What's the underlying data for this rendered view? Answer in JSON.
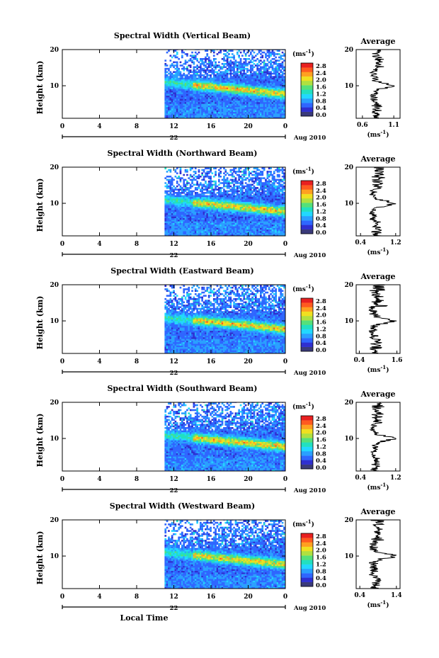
{
  "chart_data": {
    "type": "heatmap",
    "panels": [
      {
        "title": "Spectral Width (Vertical Beam)",
        "day": "22",
        "avg_ticks": [
          "0.6",
          "1.1"
        ],
        "avg_range": [
          0.5,
          1.2
        ]
      },
      {
        "title": "Spectral Width (Northward Beam)",
        "day": "22",
        "avg_ticks": [
          "0.4",
          "1.2"
        ],
        "avg_range": [
          0.3,
          1.3
        ]
      },
      {
        "title": "Spectral Width (Eastward Beam)",
        "day": "22",
        "avg_ticks": [
          "0.4",
          "1.6"
        ],
        "avg_range": [
          0.3,
          1.7
        ]
      },
      {
        "title": "Spectral Width (Southward Beam)",
        "day": "22",
        "avg_ticks": [
          "0.4",
          "1.2"
        ],
        "avg_range": [
          0.3,
          1.3
        ]
      },
      {
        "title": "Spectral Width (Westward Beam)",
        "day": "22",
        "avg_ticks": [
          "0.4",
          "1.4"
        ],
        "avg_range": [
          0.3,
          1.5
        ]
      }
    ],
    "ylabel": "Height (km)",
    "y_ticks": [
      10,
      20
    ],
    "y_range": [
      1,
      20
    ],
    "x_ticks": [
      "0",
      "4",
      "8",
      "12",
      "16",
      "20",
      "0"
    ],
    "x_range": [
      0,
      24
    ],
    "xlabel": "Local Time",
    "date_label": "Aug 2010",
    "average_title": "Average",
    "colorbar": {
      "unit": "(ms",
      "unit_exp": "-1",
      "ticks": [
        "2.8",
        "2.4",
        "2.0",
        "1.6",
        "1.2",
        "0.8",
        "0.4",
        "0.0"
      ],
      "colors": [
        "#3a3a7a",
        "#2f2fd0",
        "#2f66ff",
        "#2aa0ff",
        "#22d8ff",
        "#22e0c0",
        "#55e07a",
        "#b0e040",
        "#f0e020",
        "#ffa020",
        "#ff5a20",
        "#e82020"
      ]
    },
    "data_start_hour": 11,
    "grid": false
  }
}
